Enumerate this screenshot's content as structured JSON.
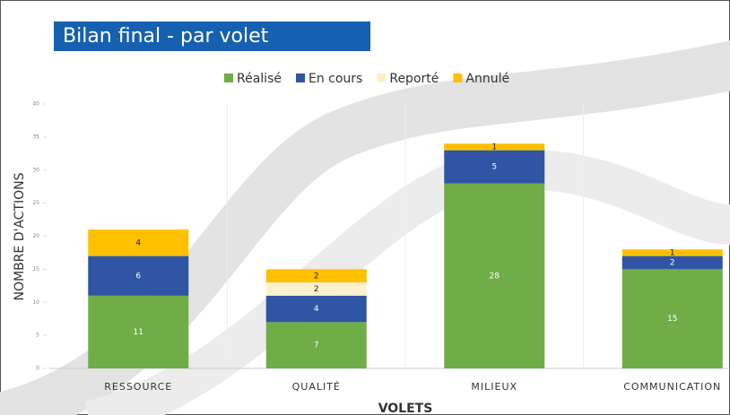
{
  "chart_data": {
    "type": "stacked_bar",
    "title": "Bilan final - par volet",
    "x_label": "VOLETS",
    "y_label": "NOMBRE D'ACTIONS",
    "categories": [
      "RESSOURCE",
      "QUALITÉ",
      "MILIEUX",
      "COMMUNICATION"
    ],
    "series": [
      {
        "name": "Réalisé",
        "color": "#70ad47",
        "values": [
          11,
          7,
          28,
          15
        ]
      },
      {
        "name": "En cours",
        "color": "#2f55a4",
        "values": [
          6,
          4,
          5,
          2
        ]
      },
      {
        "name": "Reporté",
        "color": "#fdf0cc",
        "values": [
          0,
          2,
          0,
          0
        ]
      },
      {
        "name": "Annulé",
        "color": "#ffc000",
        "values": [
          4,
          2,
          1,
          1
        ]
      }
    ],
    "ylim": [
      0,
      40
    ],
    "yticks": [
      0,
      5,
      10,
      15,
      20,
      25,
      30,
      35,
      40
    ],
    "legend": "top"
  }
}
